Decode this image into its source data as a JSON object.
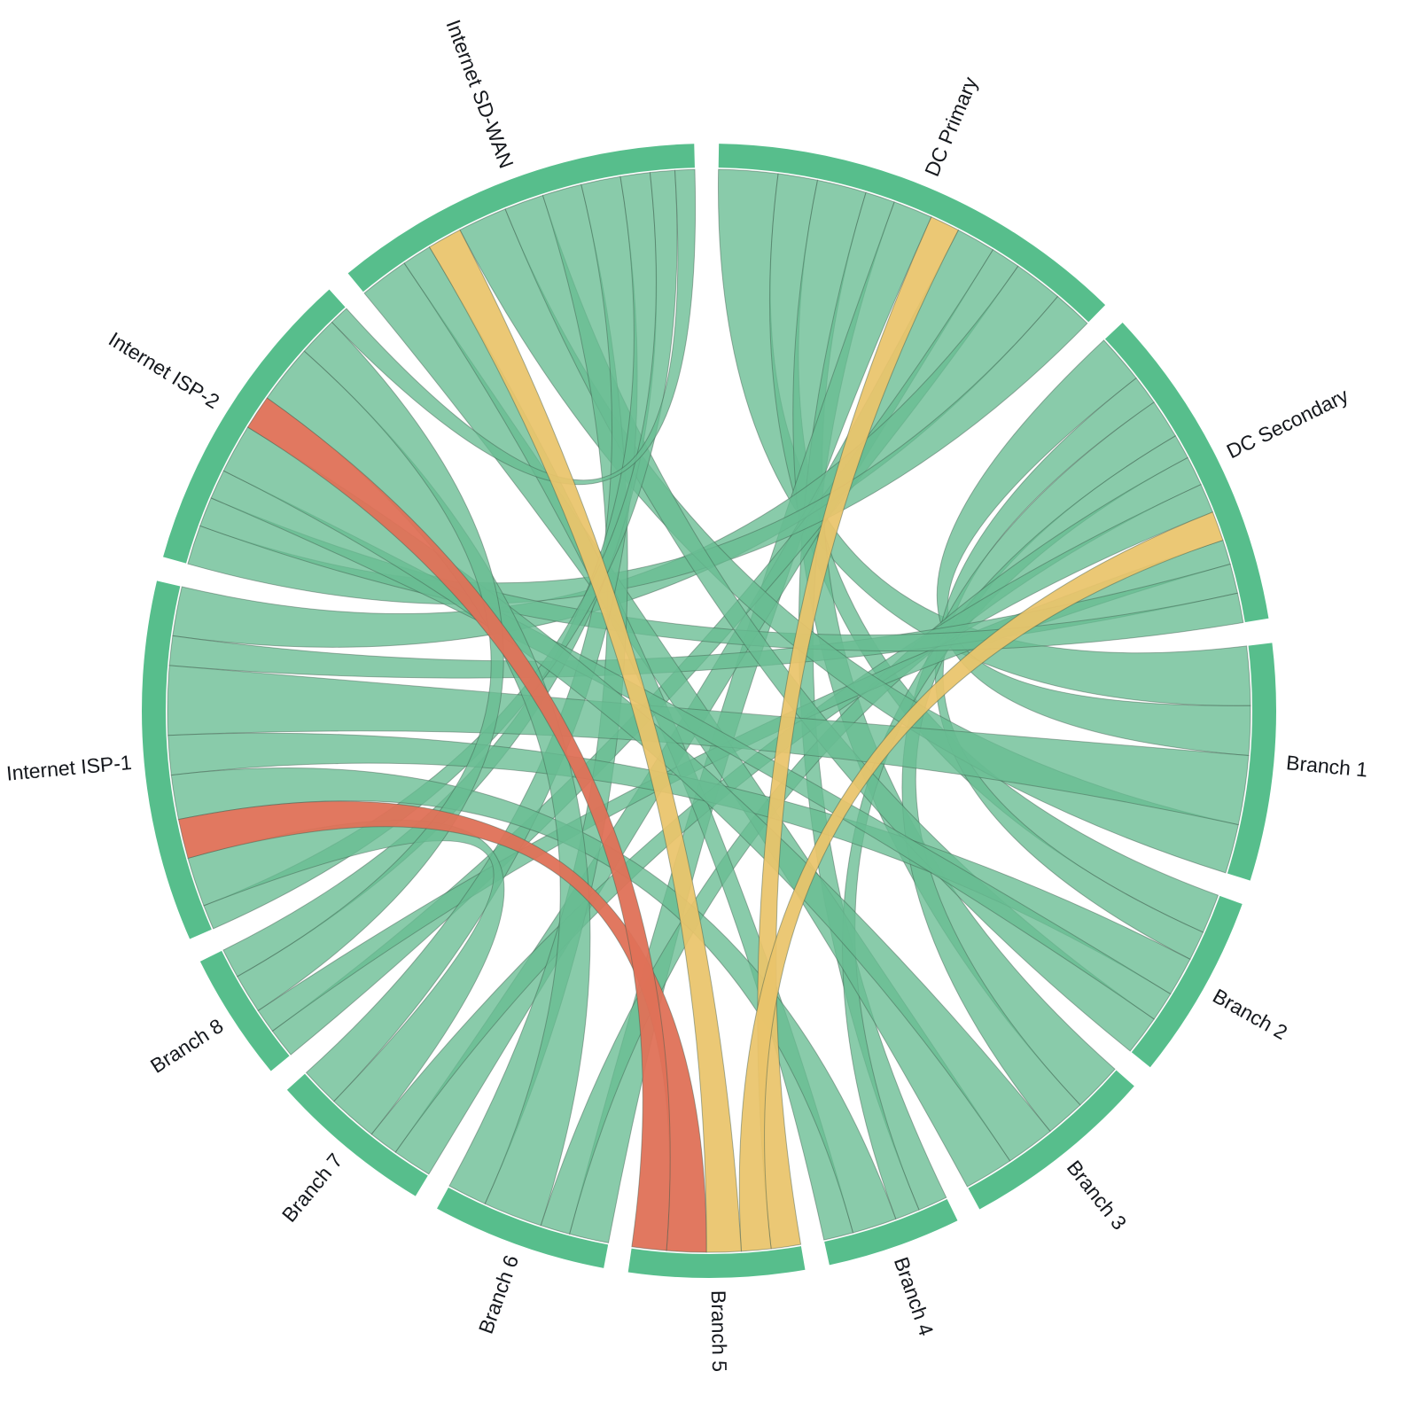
{
  "figure": {
    "background": "#ffffff",
    "description": "Network topology chord diagram showing link status between data centers, branches, ISPs and SD-WAN"
  },
  "chart_data": {
    "type": "chord",
    "title": "",
    "legend": false,
    "nodes": [
      {
        "id": "dc-primary",
        "label": "DC Primary"
      },
      {
        "id": "dc-secondary",
        "label": "DC Secondary"
      },
      {
        "id": "branch-1",
        "label": "Branch 1"
      },
      {
        "id": "branch-2",
        "label": "Branch 2"
      },
      {
        "id": "branch-3",
        "label": "Branch 3"
      },
      {
        "id": "branch-4",
        "label": "Branch 4"
      },
      {
        "id": "branch-5",
        "label": "Branch 5"
      },
      {
        "id": "branch-6",
        "label": "Branch 6"
      },
      {
        "id": "branch-7",
        "label": "Branch 7"
      },
      {
        "id": "branch-8",
        "label": "Branch 8"
      },
      {
        "id": "isp-1",
        "label": "Internet ISP-1"
      },
      {
        "id": "isp-2",
        "label": "Internet ISP-2"
      },
      {
        "id": "sd-wan",
        "label": "Internet SD-WAN"
      }
    ],
    "links": [
      {
        "source": "dc-primary",
        "target": "branch-1",
        "value": 6,
        "status": "normal"
      },
      {
        "source": "dc-primary",
        "target": "branch-2",
        "value": 4,
        "status": "normal"
      },
      {
        "source": "dc-primary",
        "target": "branch-3",
        "value": 5,
        "status": "normal"
      },
      {
        "source": "dc-primary",
        "target": "branch-4",
        "value": 3,
        "status": "normal"
      },
      {
        "source": "dc-primary",
        "target": "branch-5",
        "value": 3,
        "status": "degraded"
      },
      {
        "source": "dc-primary",
        "target": "branch-6",
        "value": 4,
        "status": "normal"
      },
      {
        "source": "dc-primary",
        "target": "branch-7",
        "value": 4,
        "status": "normal"
      },
      {
        "source": "dc-primary",
        "target": "branch-8",
        "value": 3,
        "status": "normal"
      },
      {
        "source": "dc-primary",
        "target": "isp-1",
        "value": 5,
        "status": "normal"
      },
      {
        "source": "dc-primary",
        "target": "isp-2",
        "value": 4,
        "status": "normal"
      },
      {
        "source": "dc-secondary",
        "target": "branch-1",
        "value": 5,
        "status": "normal"
      },
      {
        "source": "dc-secondary",
        "target": "branch-2",
        "value": 3,
        "status": "normal"
      },
      {
        "source": "dc-secondary",
        "target": "branch-3",
        "value": 4,
        "status": "normal"
      },
      {
        "source": "dc-secondary",
        "target": "branch-4",
        "value": 2.5,
        "status": "normal"
      },
      {
        "source": "dc-secondary",
        "target": "branch-5",
        "value": 3,
        "status": "degraded"
      },
      {
        "source": "dc-secondary",
        "target": "branch-6",
        "value": 3,
        "status": "normal"
      },
      {
        "source": "dc-secondary",
        "target": "branch-7",
        "value": 3,
        "status": "normal"
      },
      {
        "source": "dc-secondary",
        "target": "branch-8",
        "value": 2.5,
        "status": "normal"
      },
      {
        "source": "dc-secondary",
        "target": "isp-1",
        "value": 3,
        "status": "normal"
      },
      {
        "source": "dc-secondary",
        "target": "isp-2",
        "value": 3,
        "status": "normal"
      },
      {
        "source": "sd-wan",
        "target": "branch-1",
        "value": 5,
        "status": "normal"
      },
      {
        "source": "sd-wan",
        "target": "branch-2",
        "value": 4,
        "status": "normal"
      },
      {
        "source": "sd-wan",
        "target": "branch-3",
        "value": 5,
        "status": "normal"
      },
      {
        "source": "sd-wan",
        "target": "branch-4",
        "value": 3,
        "status": "normal"
      },
      {
        "source": "sd-wan",
        "target": "branch-5",
        "value": 3.5,
        "status": "degraded"
      },
      {
        "source": "sd-wan",
        "target": "branch-6",
        "value": 4,
        "status": "normal"
      },
      {
        "source": "sd-wan",
        "target": "branch-7",
        "value": 4,
        "status": "normal"
      },
      {
        "source": "sd-wan",
        "target": "branch-8",
        "value": 3,
        "status": "normal"
      },
      {
        "source": "sd-wan",
        "target": "isp-1",
        "value": 2.5,
        "status": "normal"
      },
      {
        "source": "sd-wan",
        "target": "isp-2",
        "value": 2,
        "status": "normal"
      },
      {
        "source": "isp-1",
        "target": "branch-1",
        "value": 7,
        "status": "normal"
      },
      {
        "source": "isp-1",
        "target": "branch-2",
        "value": 4,
        "status": "normal"
      },
      {
        "source": "isp-1",
        "target": "branch-4",
        "value": 4.5,
        "status": "normal"
      },
      {
        "source": "isp-1",
        "target": "branch-5",
        "value": 4,
        "status": "critical"
      },
      {
        "source": "isp-1",
        "target": "branch-7",
        "value": 5,
        "status": "normal"
      },
      {
        "source": "isp-2",
        "target": "branch-2",
        "value": 3,
        "status": "normal"
      },
      {
        "source": "isp-2",
        "target": "branch-3",
        "value": 5,
        "status": "normal"
      },
      {
        "source": "isp-2",
        "target": "branch-5",
        "value": 3.5,
        "status": "critical"
      },
      {
        "source": "isp-2",
        "target": "branch-6",
        "value": 6,
        "status": "normal"
      },
      {
        "source": "isp-2",
        "target": "branch-8",
        "value": 4,
        "status": "normal"
      }
    ],
    "colors": {
      "ring": "#57be8c",
      "normal": "#68bd92",
      "degraded": "#e9c46a",
      "critical": "#df7157",
      "stroke": "#3f5c4c",
      "label": "#15181d",
      "background": "#ffffff"
    },
    "layout": {
      "gap_deg": 2.5,
      "start_deg": 1,
      "outer_radius": 640,
      "ring_thickness": 27,
      "label_radius": 654,
      "center": [
        800,
        802
      ],
      "band_order": {
        "dc-primary": [
          "branch-1",
          "branch-2",
          "branch-3",
          "branch-4",
          "branch-6",
          "branch-5",
          "branch-7",
          "branch-8",
          "isp-1",
          "isp-2"
        ],
        "dc-secondary": [
          "branch-1",
          "branch-2",
          "branch-3",
          "branch-4",
          "branch-6",
          "branch-7",
          "branch-5",
          "branch-8",
          "isp-1",
          "isp-2"
        ],
        "sd-wan": [
          "branch-3",
          "branch-4",
          "branch-5",
          "branch-1",
          "branch-2",
          "branch-6",
          "branch-7",
          "branch-8",
          "isp-1",
          "isp-2"
        ],
        "isp-1": [
          "sd-wan",
          "branch-7",
          "branch-5",
          "branch-4",
          "branch-2",
          "branch-1",
          "dc-secondary",
          "dc-primary"
        ],
        "branch-5": [
          "dc-primary",
          "dc-secondary",
          "sd-wan",
          "isp-1",
          "isp-2"
        ]
      }
    }
  }
}
